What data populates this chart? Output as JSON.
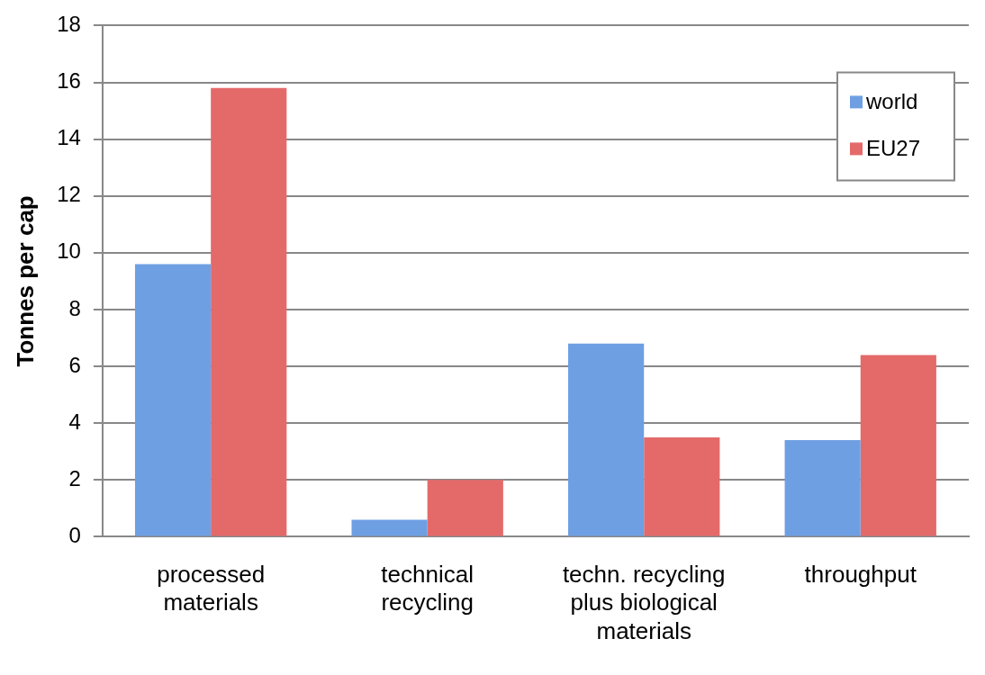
{
  "chart_data": {
    "type": "bar",
    "ylabel": "Tonnes per cap",
    "categories": [
      "processed materials",
      "technical recycling",
      "techn. recycling plus biological materials",
      "throughput"
    ],
    "series": [
      {
        "name": "world",
        "color": "#6f9fe3",
        "values": [
          9.6,
          0.6,
          6.8,
          3.4
        ]
      },
      {
        "name": "EU27",
        "color": "#e46a6a",
        "values": [
          15.8,
          2.0,
          3.5,
          6.4
        ]
      }
    ],
    "ylim": [
      0,
      18
    ],
    "yticks": [
      0,
      2,
      4,
      6,
      8,
      10,
      12,
      14,
      16,
      18
    ],
    "grid": "y",
    "legend": "top right"
  }
}
